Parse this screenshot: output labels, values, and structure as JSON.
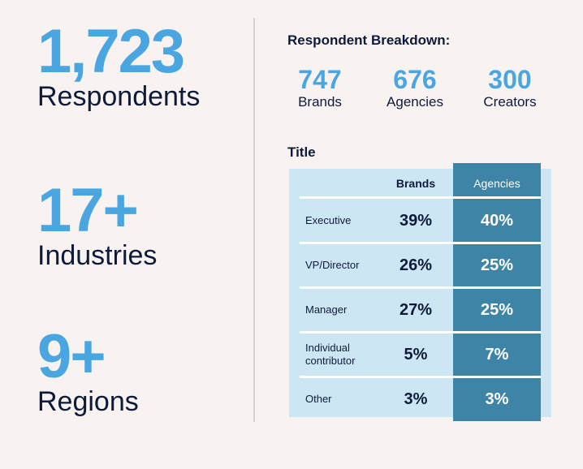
{
  "stats": [
    {
      "value": "1,723",
      "label": "Respondents"
    },
    {
      "value": "17+",
      "label": "Industries"
    },
    {
      "value": "9+",
      "label": "Regions"
    }
  ],
  "breakdown": {
    "title": "Respondent Breakdown:",
    "items": [
      {
        "value": "747",
        "label": "Brands"
      },
      {
        "value": "676",
        "label": "Agencies"
      },
      {
        "value": "300",
        "label": "Creators"
      }
    ]
  },
  "title_table": {
    "title": "Title",
    "headers": {
      "brands": "Brands",
      "agencies": "Agencies"
    },
    "rows": [
      {
        "label": "Executive",
        "brands": "39%",
        "agencies": "40%"
      },
      {
        "label": "VP/Director",
        "brands": "26%",
        "agencies": "25%"
      },
      {
        "label": "Manager",
        "brands": "27%",
        "agencies": "25%"
      },
      {
        "label": "Individual contributor",
        "brands": "5%",
        "agencies": "7%"
      },
      {
        "label": "Other",
        "brands": "3%",
        "agencies": "3%"
      }
    ]
  },
  "colors": {
    "background": "#f8f3f1",
    "accent": "#4aa6e0",
    "text": "#0e1a3a",
    "table_light": "#cde6f4",
    "table_dark": "#3d84a6"
  }
}
